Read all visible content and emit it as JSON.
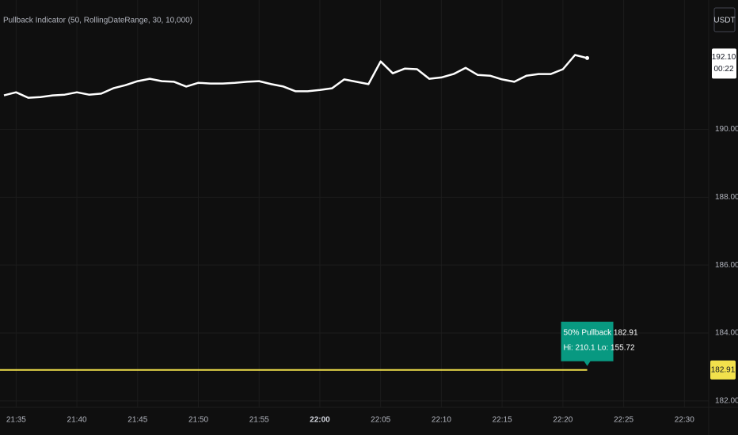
{
  "chart_data": {
    "type": "line",
    "title": "Pullback Indicator (50, RollingDateRange, 30, 10,000)",
    "currency": "USDT",
    "x": [
      "21:34",
      "21:35",
      "21:36",
      "21:37",
      "21:38",
      "21:39",
      "21:40",
      "21:41",
      "21:42",
      "21:43",
      "21:44",
      "21:45",
      "21:46",
      "21:47",
      "21:48",
      "21:49",
      "21:50",
      "21:51",
      "21:52",
      "21:53",
      "21:54",
      "21:55",
      "21:56",
      "21:57",
      "21:58",
      "21:59",
      "22:00",
      "22:01",
      "22:02",
      "22:03",
      "22:04",
      "22:05",
      "22:06",
      "22:07",
      "22:08",
      "22:09",
      "22:10",
      "22:11",
      "22:12",
      "22:13",
      "22:14",
      "22:15",
      "22:16",
      "22:17",
      "22:18",
      "22:19",
      "22:20",
      "22:21",
      "22:22"
    ],
    "series": [
      {
        "color": "#ffffff",
        "values": [
          191.0,
          191.09,
          190.93,
          190.95,
          191.0,
          191.02,
          191.09,
          191.02,
          191.05,
          191.21,
          191.3,
          191.42,
          191.49,
          191.42,
          191.4,
          191.26,
          191.37,
          191.35,
          191.35,
          191.37,
          191.4,
          191.42,
          191.33,
          191.26,
          191.12,
          191.12,
          191.16,
          191.21,
          191.47,
          191.4,
          191.33,
          192.0,
          191.65,
          191.79,
          191.77,
          191.49,
          191.53,
          191.63,
          191.81,
          191.6,
          191.58,
          191.47,
          191.4,
          191.58,
          191.63,
          191.63,
          191.77,
          192.19,
          192.1
        ]
      }
    ],
    "last_value_label": "192.10",
    "countdown": "00:22",
    "level": {
      "value": 182.91,
      "label": "182.91",
      "color": "#f2e14c"
    },
    "annotation": {
      "lines": [
        "50% Pullback 182.91",
        "Hi: 210.1  Lo: 155.72"
      ],
      "color": "#089981"
    },
    "xlim": [
      "21:34",
      "22:32"
    ],
    "xticks": [
      "21:35",
      "21:40",
      "21:45",
      "21:50",
      "21:55",
      "22:00",
      "22:05",
      "22:10",
      "22:15",
      "22:20",
      "22:25",
      "22:30"
    ],
    "ylim": [
      181.81,
      193.81
    ],
    "yticks": [
      {
        "value": 182,
        "label": "182.00"
      },
      {
        "value": 184,
        "label": "184.00"
      },
      {
        "value": 186,
        "label": "186.00"
      },
      {
        "value": 188,
        "label": "188.00"
      },
      {
        "value": 190,
        "label": "190.00"
      }
    ],
    "grid": true
  }
}
